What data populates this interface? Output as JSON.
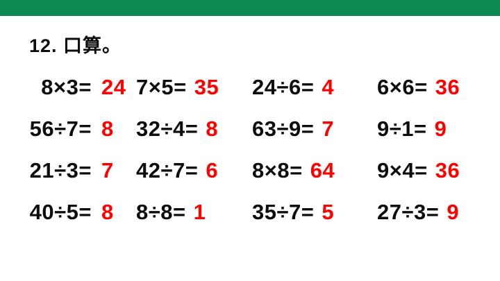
{
  "accent_colors": {
    "top_bar_green": "#0a8a50",
    "answer_red": "#ff0000",
    "text_black": "#0d0d0d"
  },
  "title": "12. 口算。",
  "problems": {
    "r1": {
      "c1": {
        "expr": "8×3=",
        "ans": "24"
      },
      "c2": {
        "expr": "7×5=",
        "ans": "35"
      },
      "c3": {
        "expr": "24÷6=",
        "ans": "4"
      },
      "c4": {
        "expr": "6×6=",
        "ans": "36"
      }
    },
    "r2": {
      "c1": {
        "expr": "56÷7=",
        "ans": "8"
      },
      "c2": {
        "expr": "32÷4=",
        "ans": "8"
      },
      "c3": {
        "expr": "63÷9=",
        "ans": "7"
      },
      "c4": {
        "expr": "9÷1=",
        "ans": "9"
      }
    },
    "r3": {
      "c1": {
        "expr": "21÷3=",
        "ans": "7"
      },
      "c2": {
        "expr": "42÷7=",
        "ans": "6"
      },
      "c3": {
        "expr": "8×8=",
        "ans": "64"
      },
      "c4": {
        "expr": "9×4=",
        "ans": "36"
      }
    },
    "r4": {
      "c1": {
        "expr": "40÷5=",
        "ans": "8"
      },
      "c2": {
        "expr": "8÷8=",
        "ans": "1"
      },
      "c3": {
        "expr": "35÷7=",
        "ans": "5"
      },
      "c4": {
        "expr": "27÷3=",
        "ans": "9"
      }
    }
  }
}
